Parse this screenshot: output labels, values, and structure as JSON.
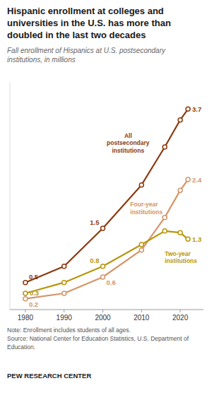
{
  "chart_data": {
    "type": "line",
    "title": "Hispanic enrollment at colleges and\nuniversities in the U.S. has more than\ndoubled in the last two decades",
    "subtitle": "Fall enrollment of Hispanics at U.S. postsecondary\ninstitutions, in millions",
    "note": "Note: Enrollment includes students of all ages.\nSource: National Center for Education Statistics, U.S. Department of\nEducation.",
    "footer": "PEW RESEARCH CENTER",
    "x": [
      1980,
      1990,
      2000,
      2010,
      2016,
      2020,
      2022
    ],
    "series": [
      {
        "name": "All\npostsecondary\ninstitutions",
        "color": "#8B3A0F",
        "values": [
          0.5,
          0.8,
          1.5,
          2.3,
          3.0,
          3.5,
          3.7
        ],
        "value_labels": [
          "0.5",
          null,
          "1.5",
          null,
          null,
          null,
          "3.7"
        ]
      },
      {
        "name": "Four-year\ninstitutions",
        "color": "#D4956A",
        "values": [
          0.2,
          0.3,
          0.6,
          1.1,
          1.7,
          2.2,
          2.4
        ],
        "value_labels": [
          "0.2",
          null,
          "0.6",
          null,
          null,
          null,
          "2.4"
        ]
      },
      {
        "name": "Two-year\ninstitutions",
        "color": "#B8960C",
        "values": [
          0.3,
          0.5,
          0.8,
          1.2,
          1.45,
          1.42,
          1.3
        ],
        "value_labels": [
          "0.3",
          null,
          "0.8",
          null,
          null,
          null,
          "1.3"
        ]
      }
    ],
    "xlim": [
      1976,
      2026
    ],
    "ylim": [
      0.0,
      4.2
    ],
    "xticks": [
      1980,
      1990,
      2000,
      2010,
      2020
    ],
    "tick_labels": "x",
    "grid": false,
    "data_labels": true,
    "marker": "circle"
  }
}
